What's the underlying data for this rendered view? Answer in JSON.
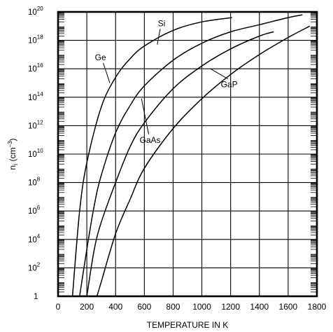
{
  "chart_data": {
    "type": "line",
    "title": "",
    "xlabel": "TEMPERATURE IN K",
    "ylabel": "n_i (cm^-3)",
    "xlim": [
      0,
      1800
    ],
    "ylim_log10": [
      0,
      20
    ],
    "y_scale": "log",
    "grid": true,
    "x_ticks": [
      0,
      200,
      400,
      600,
      800,
      1000,
      1200,
      1400,
      1600,
      1800
    ],
    "y_ticks": [
      {
        "base": "1",
        "exp": ""
      },
      {
        "base": "10",
        "exp": "2"
      },
      {
        "base": "10",
        "exp": "4"
      },
      {
        "base": "10",
        "exp": "6"
      },
      {
        "base": "10",
        "exp": "8"
      },
      {
        "base": "10",
        "exp": "10"
      },
      {
        "base": "10",
        "exp": "12"
      },
      {
        "base": "10",
        "exp": "14"
      },
      {
        "base": "10",
        "exp": "16"
      },
      {
        "base": "10",
        "exp": "18"
      },
      {
        "base": "10",
        "exp": "20"
      }
    ],
    "series": [
      {
        "name": "Ge",
        "points": [
          [
            100,
            0
          ],
          [
            150,
            6
          ],
          [
            200,
            9.4
          ],
          [
            300,
            13.3
          ],
          [
            400,
            15.4
          ],
          [
            500,
            16.7
          ],
          [
            600,
            17.6
          ],
          [
            800,
            18.7
          ],
          [
            1000,
            19.3
          ],
          [
            1210,
            19.6
          ]
        ]
      },
      {
        "name": "Si",
        "points": [
          [
            150,
            0
          ],
          [
            200,
            3.3
          ],
          [
            250,
            6.3
          ],
          [
            300,
            8.5
          ],
          [
            400,
            11.5
          ],
          [
            500,
            13.4
          ],
          [
            600,
            14.8
          ],
          [
            800,
            16.6
          ],
          [
            1000,
            17.8
          ],
          [
            1200,
            18.6
          ],
          [
            1400,
            19.1
          ],
          [
            1600,
            19.6
          ],
          [
            1700,
            19.8
          ]
        ]
      },
      {
        "name": "GaAs",
        "points": [
          [
            200,
            0
          ],
          [
            250,
            3.2
          ],
          [
            300,
            5.2
          ],
          [
            400,
            8.0
          ],
          [
            500,
            10.5
          ],
          [
            600,
            12.2
          ],
          [
            800,
            14.6
          ],
          [
            1000,
            16.2
          ],
          [
            1200,
            17.4
          ],
          [
            1400,
            18.3
          ],
          [
            1500,
            18.6
          ]
        ]
      },
      {
        "name": "GaP",
        "points": [
          [
            270,
            0
          ],
          [
            300,
            1.0
          ],
          [
            400,
            4.4
          ],
          [
            500,
            6.8
          ],
          [
            600,
            9.0
          ],
          [
            800,
            11.8
          ],
          [
            1000,
            13.9
          ],
          [
            1200,
            15.6
          ],
          [
            1400,
            17.0
          ],
          [
            1600,
            18.2
          ],
          [
            1750,
            19.0
          ]
        ]
      }
    ],
    "annotations": [
      {
        "text": "Ge",
        "x": 295,
        "y": 16.6,
        "arrow_to": [
          360,
          15.0
        ]
      },
      {
        "text": "Si",
        "x": 720,
        "y": 19.0,
        "arrow_to": [
          690,
          17.7
        ]
      },
      {
        "text": "GaAs",
        "x": 640,
        "y": 10.8,
        "arrow_to": [
          580,
          13.9
        ]
      },
      {
        "text": "GaP",
        "x": 1190,
        "y": 14.7,
        "arrow_to": [
          1060,
          16.0
        ]
      }
    ]
  }
}
